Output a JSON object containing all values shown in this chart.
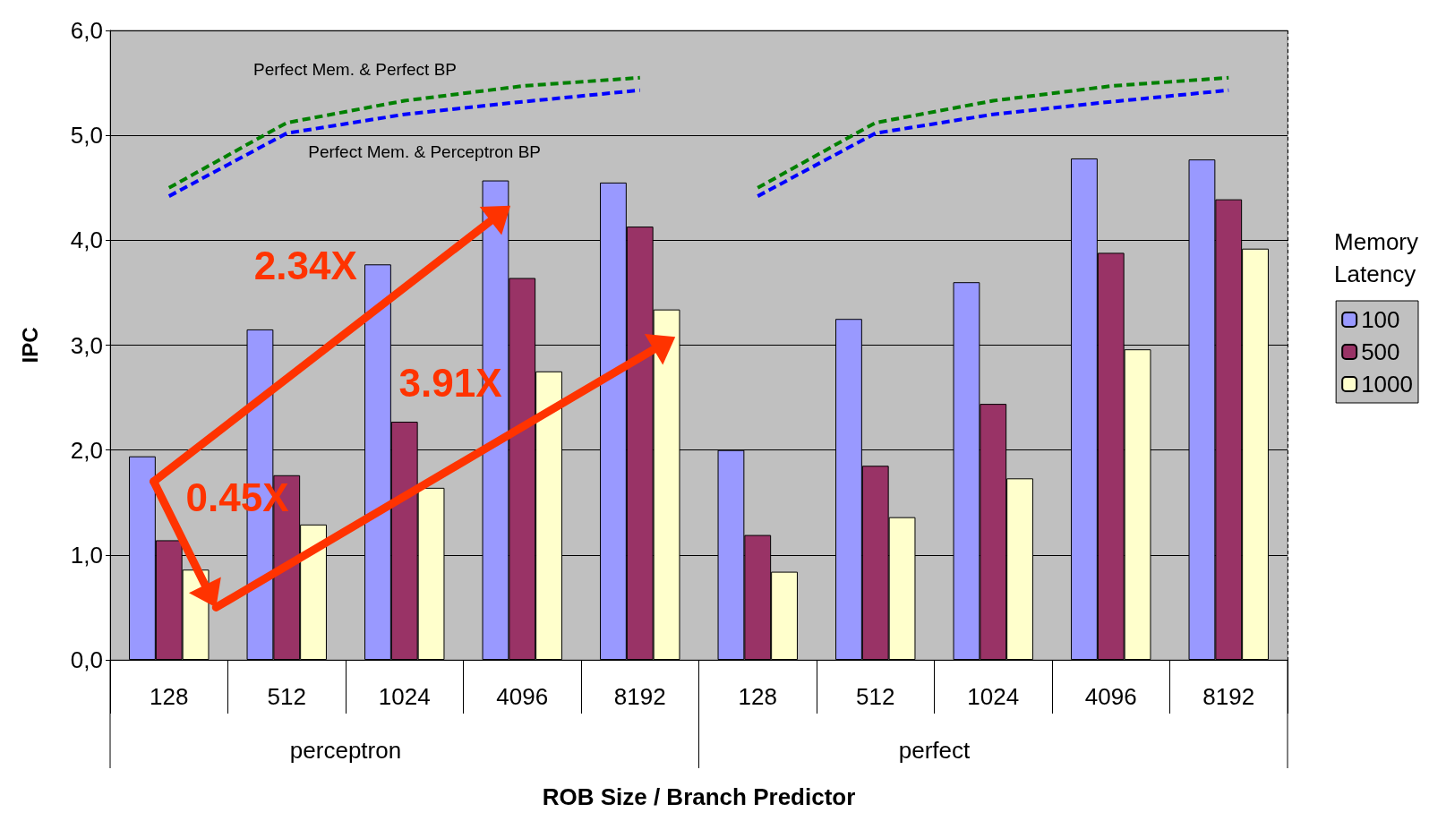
{
  "chart_data": {
    "type": "bar",
    "xlabel": "ROB Size / Branch Predictor",
    "ylabel": "IPC",
    "legend_title": "Memory Latency",
    "categories": [
      "128",
      "512",
      "1024",
      "4096",
      "8192",
      "128",
      "512",
      "1024",
      "4096",
      "8192"
    ],
    "series": [
      {
        "name": "100",
        "color": "#9999ff",
        "values": [
          1.94,
          3.15,
          3.77,
          4.57,
          4.55,
          2.0,
          3.25,
          3.6,
          4.78,
          4.77
        ]
      },
      {
        "name": "500",
        "color": "#993366",
        "values": [
          1.14,
          1.76,
          2.27,
          3.64,
          4.13,
          1.19,
          1.85,
          2.44,
          3.88,
          4.39
        ]
      },
      {
        "name": "1000",
        "color": "#ffffcc",
        "values": [
          0.86,
          1.29,
          1.64,
          2.75,
          3.34,
          0.84,
          1.36,
          1.73,
          2.96,
          3.92
        ]
      },
      {
        "type": "line",
        "name": "Perfect Mem. & Perfect BP",
        "color": "#008000",
        "line_style": "dashed",
        "values": [
          4.5,
          5.12,
          5.33,
          5.47,
          5.55,
          null,
          null,
          null,
          null,
          null
        ]
      },
      {
        "type": "line",
        "name": "Perfect Mem. & Perceptron BP",
        "color": "#0000ff",
        "line_style": "dashed",
        "values": [
          4.42,
          5.02,
          5.2,
          5.32,
          5.43,
          null,
          null,
          null,
          null,
          null
        ]
      },
      {
        "type": "line",
        "color": "#008000",
        "line_style": "dashed",
        "values": [
          null,
          null,
          null,
          null,
          null,
          4.5,
          5.12,
          5.33,
          5.47,
          5.55
        ]
      },
      {
        "type": "line",
        "color": "#0000ff",
        "line_style": "dashed",
        "values": [
          null,
          null,
          null,
          null,
          null,
          4.42,
          5.02,
          5.2,
          5.32,
          5.43
        ]
      }
    ],
    "ylim": [
      0,
      6
    ],
    "yticks": [
      {
        "value": 0,
        "label": "0,0"
      },
      {
        "value": 1,
        "label": "1,0"
      },
      {
        "value": 2,
        "label": "2,0"
      },
      {
        "value": 3,
        "label": "3,0"
      },
      {
        "value": 4,
        "label": "4,0"
      },
      {
        "value": 5,
        "label": "5,0"
      },
      {
        "value": 6,
        "label": "6,0"
      }
    ],
    "grid": "y",
    "legend": "right",
    "marker": "none",
    "annotations": [
      "2.34X",
      "3.91X",
      "0.45X",
      "perceptron",
      "perfect"
    ]
  }
}
